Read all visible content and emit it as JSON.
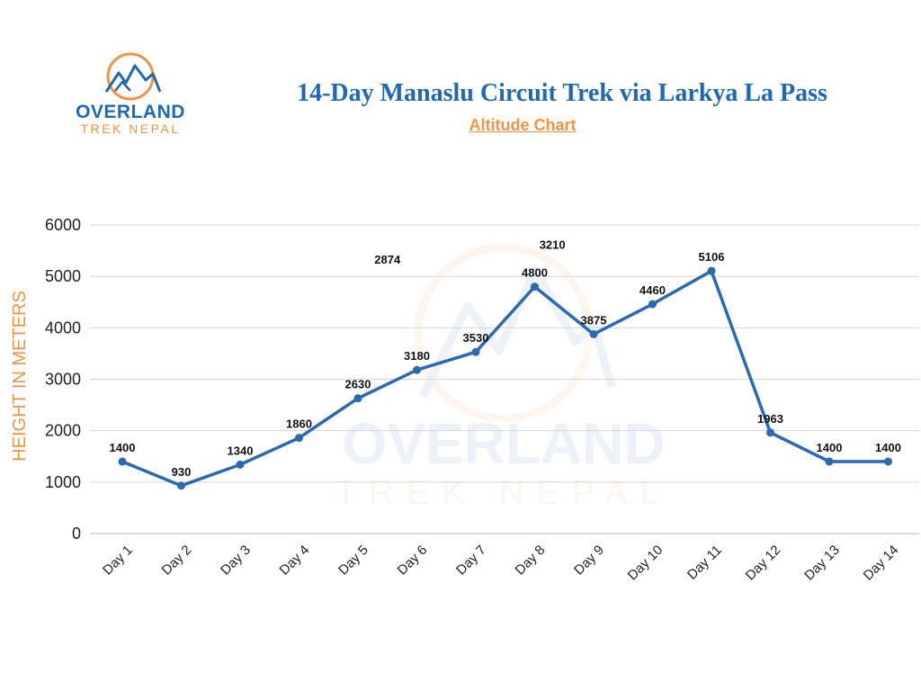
{
  "brand": {
    "name_main": "OVERLAND",
    "name_sub": "TREK NEPAL",
    "icon": "mountain-logo-icon",
    "colors": {
      "blue": "#2068b3",
      "orange": "#ee9446"
    }
  },
  "header": {
    "title": "14-Day Manaslu Circuit Trek via Larkya La Pass",
    "subtitle": "Altitude Chart"
  },
  "chart_data": {
    "type": "line",
    "title": "14-Day Manaslu Circuit Trek via Larkya La Pass",
    "subtitle": "Altitude Chart",
    "xlabel": "",
    "ylabel": "HEIGHT IN METERS",
    "ylim": [
      0,
      6000
    ],
    "yticks": [
      0,
      1000,
      2000,
      3000,
      4000,
      5000,
      6000
    ],
    "grid": true,
    "legend": "none",
    "categories": [
      "Day 1",
      "Day 2",
      "Day 3",
      "Day 4",
      "Day 5",
      "Day 6",
      "Day 7",
      "Day 8",
      "Day 9",
      "Day 10",
      "Day 11",
      "Day 12",
      "Day 13",
      "Day 14"
    ],
    "series": [
      {
        "values": [
          1400,
          930,
          1340,
          1860,
          2630,
          3180,
          3530,
          4800,
          3875,
          4460,
          5106,
          1963,
          1400,
          1400
        ],
        "color": "#2a6ab3"
      }
    ],
    "annotations": [
      {
        "text": "2874",
        "x": 5.5,
        "y": 5250
      },
      {
        "text": "3210",
        "x": 8.3,
        "y": 5540
      }
    ],
    "watermark": {
      "icon": "mountain-logo-icon",
      "text_main": "OVERLAND",
      "text_sub": "TREK NEPAL"
    }
  }
}
